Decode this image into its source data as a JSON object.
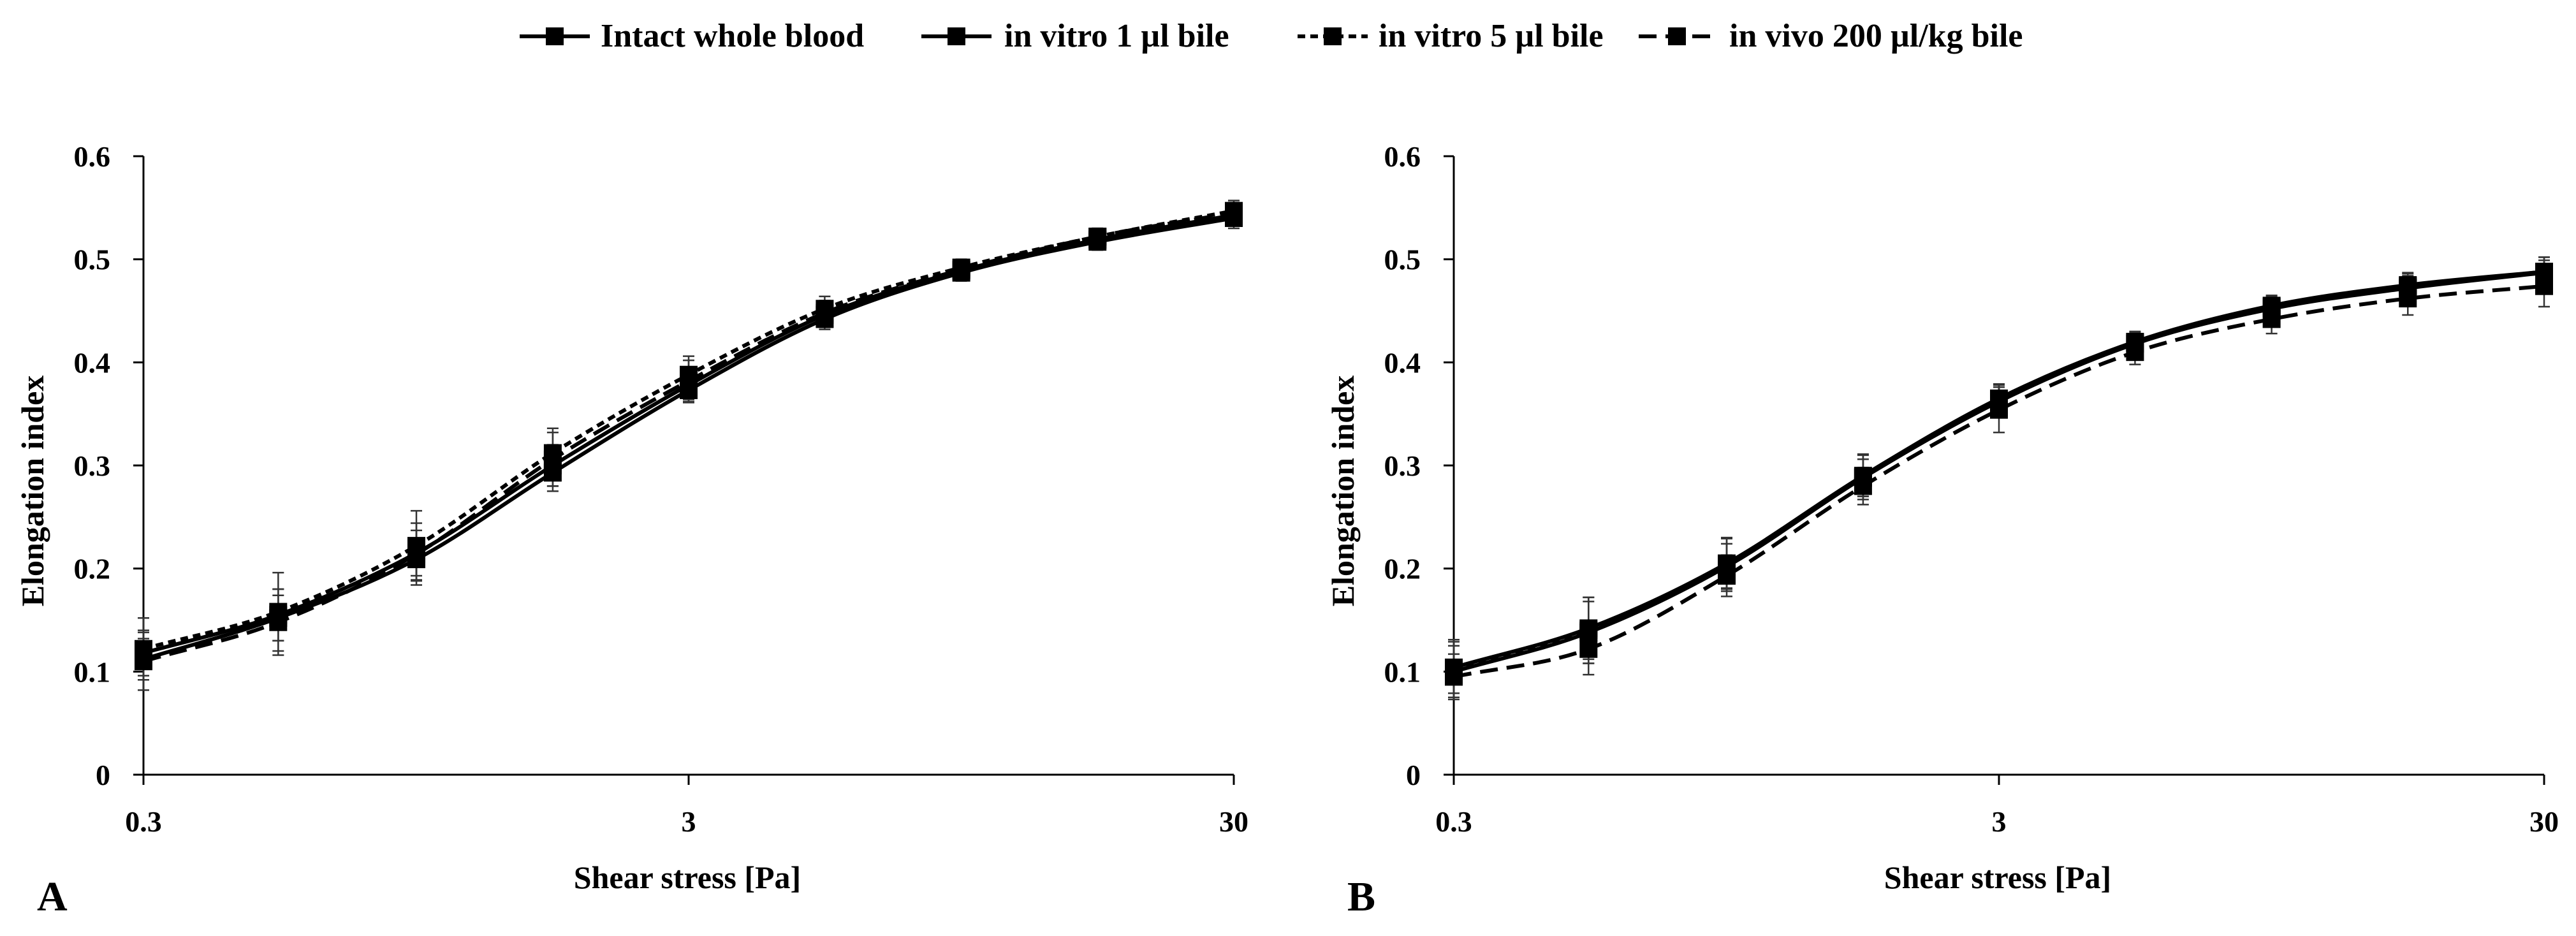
{
  "legend": {
    "items": [
      {
        "label": "Intact whole blood",
        "dash": "solid"
      },
      {
        "label": "in vitro 1 µl bile",
        "dash": "solid"
      },
      {
        "label": "in vitro 5 µl bile",
        "dash": "short"
      },
      {
        "label": "in vivo 200 µl/kg bile",
        "dash": "long"
      }
    ]
  },
  "chart_data": [
    {
      "type": "line",
      "panel_label": "A",
      "xlabel": "Shear stress [Pa]",
      "ylabel": "Elongation index",
      "xscale": "log",
      "xlim": [
        0.3,
        30
      ],
      "ylim": [
        0,
        0.6
      ],
      "xticks": [
        "0.3",
        "3",
        "30"
      ],
      "yticks": [
        "0",
        "0.1",
        "0.2",
        "0.3",
        "0.4",
        "0.5",
        "0.6"
      ],
      "x": [
        0.3,
        0.53,
        0.95,
        1.69,
        3.0,
        5.33,
        9.49,
        16.87,
        30.0
      ],
      "series": [
        {
          "name": "Intact whole blood",
          "dash": "solid",
          "values": [
            0.112,
            0.152,
            0.209,
            0.293,
            0.373,
            0.442,
            0.487,
            0.517,
            0.54
          ],
          "errors": [
            0.02,
            0.022,
            0.02,
            0.018,
            0.012,
            0.01,
            0.008,
            0.008,
            0.01
          ]
        },
        {
          "name": "in vitro 1 µl bile",
          "dash": "solid",
          "values": [
            0.118,
            0.155,
            0.215,
            0.3,
            0.378,
            0.446,
            0.489,
            0.519,
            0.543
          ],
          "errors": [
            0.022,
            0.025,
            0.022,
            0.02,
            0.014,
            0.012,
            0.008,
            0.008,
            0.01
          ]
        },
        {
          "name": "in vitro 5 µl bile",
          "dash": "short",
          "values": [
            0.122,
            0.158,
            0.222,
            0.312,
            0.388,
            0.452,
            0.492,
            0.522,
            0.547
          ],
          "errors": [
            0.03,
            0.038,
            0.034,
            0.024,
            0.018,
            0.012,
            0.008,
            0.008,
            0.01
          ]
        },
        {
          "name": "in vivo 200 µl/kg bile",
          "dash": "long",
          "values": [
            0.11,
            0.148,
            0.214,
            0.306,
            0.382,
            0.448,
            0.49,
            0.522,
            0.545
          ],
          "errors": [
            0.028,
            0.032,
            0.03,
            0.026,
            0.02,
            0.012,
            0.008,
            0.008,
            0.01
          ]
        }
      ]
    },
    {
      "type": "line",
      "panel_label": "B",
      "xlabel": "Shear stress [Pa]",
      "ylabel": "Elongation index",
      "xscale": "log",
      "xlim": [
        0.3,
        30
      ],
      "ylim": [
        0,
        0.6
      ],
      "xticks": [
        "0.3",
        "3",
        "30"
      ],
      "yticks": [
        "0",
        "0.1",
        "0.2",
        "0.3",
        "0.4",
        "0.5",
        "0.6"
      ],
      "x": [
        0.3,
        0.53,
        0.95,
        1.69,
        3.0,
        5.33,
        9.49,
        16.87,
        30.0
      ],
      "series": [
        {
          "name": "Intact whole blood",
          "dash": "solid",
          "values": [
            0.1,
            0.138,
            0.202,
            0.288,
            0.362,
            0.418,
            0.452,
            0.472,
            0.487
          ],
          "errors": [
            0.025,
            0.03,
            0.022,
            0.018,
            0.014,
            0.01,
            0.01,
            0.012,
            0.012
          ]
        },
        {
          "name": "in vitro 1 µl bile",
          "dash": "solid",
          "values": [
            0.104,
            0.142,
            0.205,
            0.29,
            0.365,
            0.42,
            0.455,
            0.475,
            0.488
          ],
          "errors": [
            0.025,
            0.03,
            0.024,
            0.02,
            0.014,
            0.01,
            0.01,
            0.012,
            0.014
          ]
        },
        {
          "name": "in vitro 5 µl bile",
          "dash": "short",
          "values": [
            0.103,
            0.14,
            0.204,
            0.289,
            0.364,
            0.419,
            0.454,
            0.474,
            0.488
          ],
          "errors": [
            0.028,
            0.032,
            0.026,
            0.022,
            0.014,
            0.01,
            0.01,
            0.012,
            0.014
          ]
        },
        {
          "name": "in vivo 200 µl/kg bile",
          "dash": "long",
          "values": [
            0.095,
            0.122,
            0.193,
            0.28,
            0.354,
            0.41,
            0.442,
            0.462,
            0.474
          ],
          "errors": [
            0.022,
            0.025,
            0.02,
            0.018,
            0.022,
            0.012,
            0.014,
            0.016,
            0.02
          ]
        }
      ]
    }
  ]
}
